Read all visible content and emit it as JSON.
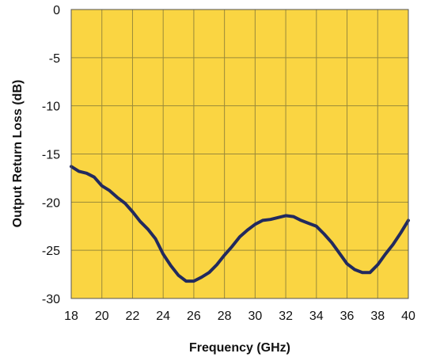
{
  "chart_data": {
    "type": "line",
    "title": "",
    "xlabel": "Frequency (GHz)",
    "ylabel": "Output Return Loss (dB)",
    "xlim": [
      18,
      40
    ],
    "ylim": [
      -30,
      0
    ],
    "xticks": [
      18,
      20,
      22,
      24,
      26,
      28,
      30,
      32,
      34,
      36,
      38,
      40
    ],
    "yticks": [
      0,
      -5,
      -10,
      -15,
      -20,
      -25,
      -30
    ],
    "xtick_labels": [
      "18",
      "20",
      "22",
      "24",
      "26",
      "28",
      "30",
      "32",
      "34",
      "36",
      "38",
      "40"
    ],
    "ytick_labels": [
      "0",
      "-5",
      "-10",
      "-15",
      "-20",
      "-25",
      "-30"
    ],
    "grid": true,
    "colors": {
      "plot_background": "#fad542",
      "line": "#222a5e",
      "grid": "#9a8a3a",
      "frame": "#555555"
    },
    "series": [
      {
        "x": [
          18,
          18.5,
          19,
          19.5,
          20,
          20.5,
          21,
          21.5,
          22,
          22.5,
          23,
          23.5,
          24,
          24.5,
          25,
          25.5,
          26,
          26.5,
          27,
          27.5,
          28,
          28.5,
          29,
          29.5,
          30,
          30.5,
          31,
          31.5,
          32,
          32.5,
          33,
          33.5,
          34,
          34.5,
          35,
          35.5,
          36,
          36.5,
          37,
          37.5,
          38,
          38.5,
          39,
          39.5,
          40
        ],
        "y": [
          -16.3,
          -16.8,
          -17.0,
          -17.4,
          -18.3,
          -18.8,
          -19.5,
          -20.1,
          -21.0,
          -22.0,
          -22.8,
          -23.8,
          -25.4,
          -26.6,
          -27.6,
          -28.2,
          -28.2,
          -27.8,
          -27.3,
          -26.5,
          -25.5,
          -24.6,
          -23.6,
          -22.9,
          -22.3,
          -21.9,
          -21.8,
          -21.6,
          -21.4,
          -21.5,
          -21.9,
          -22.2,
          -22.5,
          -23.3,
          -24.2,
          -25.3,
          -26.4,
          -27.0,
          -27.3,
          -27.3,
          -26.5,
          -25.4,
          -24.4,
          -23.2,
          -21.9
        ]
      }
    ]
  }
}
